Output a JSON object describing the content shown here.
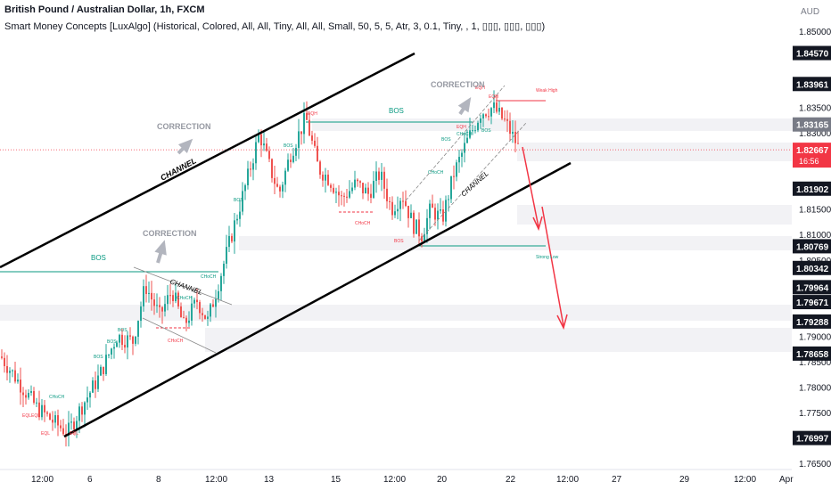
{
  "header": {
    "title": "British Pound / Australian Dollar, 1h, FXCM",
    "indicator": "Smart Money Concepts [LuxAlgo] (Historical, Colored, All, All, Tiny, All, All, Small, 50, 5, 5, Atr, 3, 0.1, Tiny, , 1, ▯▯▯, ▯▯▯, ▯▯▯)"
  },
  "colors": {
    "bull": "#26a69a",
    "bear": "#ef5350",
    "struct_green": "#089981",
    "struct_red": "#f23645",
    "arrow_gray": "#b2b5be",
    "current_price": "#f23645",
    "black_label": "#131722",
    "gray_label": "#787b86"
  },
  "chart_data": {
    "type": "candlestick",
    "currency": "AUD",
    "ylim": [
      1.765,
      1.854
    ],
    "y_ticks": [
      "1.85000",
      "1.83500",
      "1.83000",
      "1.81500",
      "1.81000",
      "1.80500",
      "1.79000",
      "1.78500",
      "1.78000",
      "1.77500",
      "1.76500"
    ],
    "x_ticks": [
      "12:00",
      "6",
      "8",
      "12:00",
      "13",
      "15",
      "12:00",
      "20",
      "22",
      "12:00",
      "27",
      "29",
      "12:00",
      "Apr"
    ],
    "price_labels": [
      {
        "value": "1.84570",
        "style": "black"
      },
      {
        "value": "1.83961",
        "style": "black"
      },
      {
        "value": "1.83165",
        "style": "gray"
      },
      {
        "value": "1.82667",
        "style": "current",
        "countdown": "16:56"
      },
      {
        "value": "1.81902",
        "style": "black"
      },
      {
        "value": "1.80769",
        "style": "black"
      },
      {
        "value": "1.80342",
        "style": "black"
      },
      {
        "value": "1.79964",
        "style": "black"
      },
      {
        "value": "1.79671",
        "style": "black"
      },
      {
        "value": "1.79288",
        "style": "black"
      },
      {
        "value": "1.78658",
        "style": "black"
      },
      {
        "value": "1.76997",
        "style": "black"
      }
    ],
    "path_points": [
      [
        0,
        1.786
      ],
      [
        20,
        1.781
      ],
      [
        40,
        1.776
      ],
      [
        60,
        1.773
      ],
      [
        75,
        1.771
      ],
      [
        90,
        1.776
      ],
      [
        110,
        1.782
      ],
      [
        130,
        1.79
      ],
      [
        148,
        1.789
      ],
      [
        162,
        1.8
      ],
      [
        178,
        1.794
      ],
      [
        192,
        1.799
      ],
      [
        205,
        1.792
      ],
      [
        220,
        1.797
      ],
      [
        232,
        1.793
      ],
      [
        248,
        1.803
      ],
      [
        262,
        1.812
      ],
      [
        275,
        1.82
      ],
      [
        290,
        1.83
      ],
      [
        300,
        1.824
      ],
      [
        312,
        1.818
      ],
      [
        325,
        1.826
      ],
      [
        342,
        1.833
      ],
      [
        356,
        1.823
      ],
      [
        368,
        1.821
      ],
      [
        382,
        1.817
      ],
      [
        398,
        1.82
      ],
      [
        412,
        1.818
      ],
      [
        425,
        1.822
      ],
      [
        438,
        1.815
      ],
      [
        450,
        1.818
      ],
      [
        462,
        1.812
      ],
      [
        472,
        1.81
      ],
      [
        482,
        1.815
      ],
      [
        495,
        1.813
      ],
      [
        508,
        1.822
      ],
      [
        522,
        1.828
      ],
      [
        538,
        1.834
      ],
      [
        552,
        1.835
      ],
      [
        566,
        1.832
      ],
      [
        578,
        1.828
      ],
      [
        582,
        1.8265
      ]
    ],
    "series": [
      {
        "name": "Weak High",
        "value": 1.8362
      },
      {
        "name": "Strong Low",
        "value": 1.8073
      }
    ],
    "annotations": {
      "correction": "CORRECTION",
      "channel": "CHANNEL",
      "bos": "BOS",
      "choch": "CHoCH",
      "eqh": "EQH",
      "eql": "EQL",
      "weak_high": "Weak High",
      "strong_low": "Strong Low"
    },
    "grid": false
  }
}
